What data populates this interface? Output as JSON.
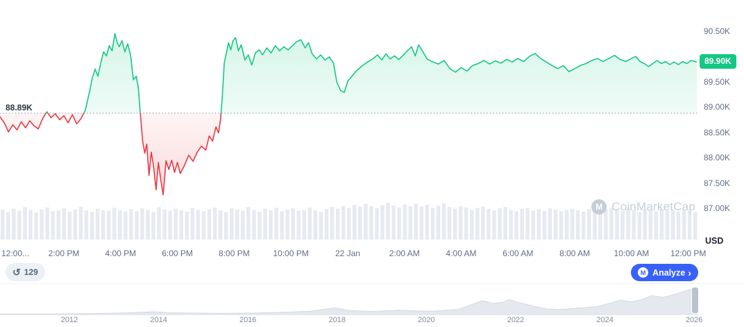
{
  "chart_data": [
    {
      "id": "price-line",
      "type": "line",
      "x_axis": {
        "ticks": [
          {
            "label": "12:00...",
            "hour": 0
          },
          {
            "label": "2:00 PM",
            "hour": 2
          },
          {
            "label": "4:00 PM",
            "hour": 4
          },
          {
            "label": "6:00 PM",
            "hour": 6
          },
          {
            "label": "8:00 PM",
            "hour": 8
          },
          {
            "label": "10:00 PM",
            "hour": 10
          },
          {
            "label": "22 Jan",
            "hour": 12
          },
          {
            "label": "2:00 AM",
            "hour": 14
          },
          {
            "label": "4:00 AM",
            "hour": 16
          },
          {
            "label": "6:00 AM",
            "hour": 18
          },
          {
            "label": "8:00 AM",
            "hour": 20
          },
          {
            "label": "10:00 AM",
            "hour": 22
          },
          {
            "label": "12:00 PM",
            "hour": 24
          }
        ],
        "range_hours": [
          -0.25,
          24.3
        ]
      },
      "y_axis": {
        "unit_label": "USD",
        "ticks": [
          {
            "label": "90.50K",
            "value": 90.5
          },
          {
            "label": "89.50K",
            "value": 89.5
          },
          {
            "label": "89.00K",
            "value": 89.0
          },
          {
            "label": "88.50K",
            "value": 88.5
          },
          {
            "label": "88.00K",
            "value": 88.0
          },
          {
            "label": "87.50K",
            "value": 87.5
          },
          {
            "label": "87.00K",
            "value": 87.0
          }
        ],
        "range": [
          87.0,
          90.5
        ]
      },
      "baseline": {
        "label": "88.89K",
        "value": 88.89
      },
      "current_price": {
        "label": "89.90K",
        "value": 89.9
      },
      "colors": {
        "up": "#16c784",
        "down": "#ea3943",
        "baseline_dots": "#97a1b3"
      },
      "series": [
        [
          -0.25,
          88.82
        ],
        [
          -0.1,
          88.7
        ],
        [
          0.05,
          88.52
        ],
        [
          0.2,
          88.66
        ],
        [
          0.35,
          88.56
        ],
        [
          0.5,
          88.72
        ],
        [
          0.65,
          88.6
        ],
        [
          0.8,
          88.74
        ],
        [
          0.95,
          88.64
        ],
        [
          1.1,
          88.58
        ],
        [
          1.25,
          88.78
        ],
        [
          1.4,
          88.92
        ],
        [
          1.55,
          88.8
        ],
        [
          1.7,
          88.88
        ],
        [
          1.85,
          88.76
        ],
        [
          2,
          88.84
        ],
        [
          2.15,
          88.7
        ],
        [
          2.3,
          88.86
        ],
        [
          2.45,
          88.68
        ],
        [
          2.6,
          88.78
        ],
        [
          2.75,
          88.94
        ],
        [
          2.9,
          89.3
        ],
        [
          3,
          89.58
        ],
        [
          3.1,
          89.76
        ],
        [
          3.2,
          89.62
        ],
        [
          3.3,
          89.88
        ],
        [
          3.4,
          90.1
        ],
        [
          3.5,
          90.02
        ],
        [
          3.6,
          90.22
        ],
        [
          3.7,
          90.12
        ],
        [
          3.8,
          90.46
        ],
        [
          3.88,
          90.28
        ],
        [
          3.95,
          90.2
        ],
        [
          4.05,
          90.32
        ],
        [
          4.15,
          90.1
        ],
        [
          4.25,
          90.26
        ],
        [
          4.35,
          90.04
        ],
        [
          4.45,
          89.55
        ],
        [
          4.55,
          89.62
        ],
        [
          4.62,
          89.4
        ],
        [
          4.7,
          88.85
        ],
        [
          4.78,
          88.32
        ],
        [
          4.85,
          88.1
        ],
        [
          4.92,
          88.28
        ],
        [
          5,
          87.66
        ],
        [
          5.08,
          88.12
        ],
        [
          5.16,
          87.85
        ],
        [
          5.25,
          87.38
        ],
        [
          5.33,
          87.92
        ],
        [
          5.42,
          87.55
        ],
        [
          5.5,
          87.28
        ],
        [
          5.6,
          87.95
        ],
        [
          5.7,
          87.78
        ],
        [
          5.8,
          87.96
        ],
        [
          5.9,
          87.72
        ],
        [
          6,
          87.92
        ],
        [
          6.1,
          87.7
        ],
        [
          6.25,
          87.86
        ],
        [
          6.4,
          88.06
        ],
        [
          6.55,
          87.94
        ],
        [
          6.7,
          88.12
        ],
        [
          6.85,
          88.24
        ],
        [
          7,
          88.16
        ],
        [
          7.12,
          88.44
        ],
        [
          7.24,
          88.34
        ],
        [
          7.36,
          88.62
        ],
        [
          7.45,
          88.5
        ],
        [
          7.52,
          88.76
        ],
        [
          7.58,
          89.2
        ],
        [
          7.65,
          89.88
        ],
        [
          7.72,
          90.06
        ],
        [
          7.8,
          90.28
        ],
        [
          7.88,
          90.14
        ],
        [
          7.96,
          90.32
        ],
        [
          8.05,
          90.38
        ],
        [
          8.15,
          90.12
        ],
        [
          8.25,
          90.24
        ],
        [
          8.38,
          89.94
        ],
        [
          8.5,
          90.04
        ],
        [
          8.62,
          89.84
        ],
        [
          8.75,
          90.08
        ],
        [
          8.88,
          90.14
        ],
        [
          9,
          90.04
        ],
        [
          9.15,
          90.18
        ],
        [
          9.3,
          90.08
        ],
        [
          9.45,
          90.22
        ],
        [
          9.6,
          90.12
        ],
        [
          9.75,
          90.2
        ],
        [
          9.9,
          90.14
        ],
        [
          10.05,
          90.22
        ],
        [
          10.2,
          90.3
        ],
        [
          10.35,
          90.34
        ],
        [
          10.5,
          90.18
        ],
        [
          10.62,
          90.28
        ],
        [
          10.75,
          90.06
        ],
        [
          10.9,
          89.96
        ],
        [
          11.05,
          90.04
        ],
        [
          11.2,
          89.94
        ],
        [
          11.35,
          90
        ],
        [
          11.5,
          89.88
        ],
        [
          11.62,
          89.5
        ],
        [
          11.75,
          89.34
        ],
        [
          11.88,
          89.3
        ],
        [
          12,
          89.52
        ],
        [
          12.15,
          89.62
        ],
        [
          12.3,
          89.72
        ],
        [
          12.5,
          89.82
        ],
        [
          12.7,
          89.9
        ],
        [
          12.9,
          89.97
        ],
        [
          13.05,
          90.04
        ],
        [
          13.2,
          89.94
        ],
        [
          13.35,
          90.06
        ],
        [
          13.5,
          89.96
        ],
        [
          13.65,
          90.02
        ],
        [
          13.8,
          89.95
        ],
        [
          13.95,
          90.03
        ],
        [
          14.1,
          90.12
        ],
        [
          14.25,
          90.2
        ],
        [
          14.38,
          90.02
        ],
        [
          14.5,
          90.24
        ],
        [
          14.65,
          90.1
        ],
        [
          14.8,
          89.96
        ],
        [
          15,
          89.9
        ],
        [
          15.2,
          89.86
        ],
        [
          15.4,
          89.93
        ],
        [
          15.6,
          89.77
        ],
        [
          15.8,
          89.7
        ],
        [
          16,
          89.79
        ],
        [
          16.2,
          89.72
        ],
        [
          16.4,
          89.83
        ],
        [
          16.6,
          89.87
        ],
        [
          16.8,
          89.93
        ],
        [
          17,
          89.86
        ],
        [
          17.2,
          89.92
        ],
        [
          17.4,
          89.88
        ],
        [
          17.6,
          89.95
        ],
        [
          17.8,
          89.9
        ],
        [
          18,
          89.97
        ],
        [
          18.2,
          89.91
        ],
        [
          18.4,
          90.01
        ],
        [
          18.6,
          90.07
        ],
        [
          18.8,
          89.97
        ],
        [
          19,
          89.9
        ],
        [
          19.2,
          89.83
        ],
        [
          19.4,
          89.77
        ],
        [
          19.6,
          89.83
        ],
        [
          19.8,
          89.71
        ],
        [
          20,
          89.77
        ],
        [
          20.2,
          89.83
        ],
        [
          20.4,
          89.87
        ],
        [
          20.6,
          89.93
        ],
        [
          20.8,
          89.97
        ],
        [
          21,
          89.91
        ],
        [
          21.2,
          89.97
        ],
        [
          21.4,
          90.03
        ],
        [
          21.6,
          89.95
        ],
        [
          21.8,
          89.91
        ],
        [
          22,
          89.97
        ],
        [
          22.15,
          90.01
        ],
        [
          22.3,
          89.91
        ],
        [
          22.45,
          89.87
        ],
        [
          22.6,
          89.81
        ],
        [
          22.75,
          89.87
        ],
        [
          22.9,
          89.93
        ],
        [
          23.05,
          89.87
        ],
        [
          23.2,
          89.91
        ],
        [
          23.35,
          89.85
        ],
        [
          23.5,
          89.9
        ],
        [
          23.65,
          89.85
        ],
        [
          23.8,
          89.91
        ],
        [
          23.95,
          89.87
        ],
        [
          24.1,
          89.93
        ],
        [
          24.3,
          89.9
        ]
      ]
    },
    {
      "id": "volume-bars",
      "type": "bar",
      "color": "#e7eaf0",
      "values": [
        7.2,
        6.6,
        7.4,
        6.9,
        7.8,
        7.1,
        6.5,
        7.3,
        7.7,
        6.8,
        7.0,
        7.5,
        6.7,
        7.2,
        7.9,
        7.0,
        6.6,
        7.4,
        7.1,
        6.9,
        7.6,
        7.0,
        6.7,
        7.3,
        6.8,
        7.5,
        7.1,
        6.6,
        7.8,
        7.2,
        6.9,
        7.4,
        7.0,
        6.7,
        7.6,
        7.1,
        6.8,
        7.3,
        7.7,
        7.0,
        6.6,
        7.5,
        7.2,
        6.9,
        7.8,
        7.1,
        6.7,
        7.4,
        7.0,
        7.6,
        6.8,
        7.2,
        7.5,
        6.9,
        7.1,
        7.7,
        7.0,
        6.6,
        7.3,
        7.8,
        7.4,
        8.1,
        7.6,
        8.3,
        7.9,
        8.6,
        8.0,
        7.5,
        8.2,
        8.8,
        8.1,
        7.7,
        8.4,
        8.0,
        8.6,
        7.9,
        8.3,
        7.6,
        8.1,
        8.7,
        7.8,
        7.4,
        8.0,
        7.7,
        7.2,
        7.6,
        7.9,
        7.3,
        7.0,
        7.5,
        7.8,
        7.1,
        6.8,
        7.4,
        7.6,
        7.0,
        7.3,
        6.9,
        7.5,
        7.2,
        6.8,
        7.1,
        7.4,
        7.0,
        6.7,
        7.3,
        7.6,
        6.9,
        7.2,
        7.5,
        7.0,
        6.8,
        7.4,
        7.1,
        6.6,
        7.2,
        7.0,
        6.8,
        7.3,
        6.9,
        7.1,
        6.7,
        7.0,
        6.8,
        6.6
      ]
    },
    {
      "id": "history-overview",
      "type": "area",
      "years": [
        {
          "label": "2012",
          "year": 2012
        },
        {
          "label": "2014",
          "year": 2014
        },
        {
          "label": "2016",
          "year": 2016
        },
        {
          "label": "2018",
          "year": 2018
        },
        {
          "label": "2020",
          "year": 2020
        },
        {
          "label": "2022",
          "year": 2022
        },
        {
          "label": "2024",
          "year": 2024
        },
        {
          "label": "2026",
          "year": 2026
        }
      ],
      "x_range_years": [
        2010.4,
        2026.1
      ],
      "points": [
        [
          2010.4,
          2
        ],
        [
          2011,
          2
        ],
        [
          2012,
          2.5
        ],
        [
          2012.8,
          4
        ],
        [
          2013.3,
          6
        ],
        [
          2013.9,
          10
        ],
        [
          2014.2,
          7
        ],
        [
          2014.8,
          5
        ],
        [
          2015.5,
          4
        ],
        [
          2016,
          5
        ],
        [
          2016.8,
          8
        ],
        [
          2017.4,
          12
        ],
        [
          2017.95,
          24
        ],
        [
          2018.3,
          14
        ],
        [
          2018.8,
          11
        ],
        [
          2019.4,
          16
        ],
        [
          2019.8,
          13
        ],
        [
          2020.2,
          12
        ],
        [
          2020.7,
          18
        ],
        [
          2020.95,
          32
        ],
        [
          2021.25,
          50
        ],
        [
          2021.5,
          40
        ],
        [
          2021.7,
          44
        ],
        [
          2021.85,
          54
        ],
        [
          2022.1,
          42
        ],
        [
          2022.4,
          30
        ],
        [
          2022.7,
          20
        ],
        [
          2023,
          18
        ],
        [
          2023.4,
          23
        ],
        [
          2023.8,
          28
        ],
        [
          2024.1,
          40
        ],
        [
          2024.35,
          52
        ],
        [
          2024.6,
          46
        ],
        [
          2024.85,
          55
        ],
        [
          2025.05,
          68
        ],
        [
          2025.3,
          62
        ],
        [
          2025.55,
          72
        ],
        [
          2025.75,
          82
        ],
        [
          2025.95,
          92
        ],
        [
          2026.1,
          86
        ]
      ]
    }
  ],
  "watermark": {
    "label": "CoinMarketCap"
  },
  "toolbar": {
    "history_count": "129",
    "analyze_label": "Analyze"
  },
  "icons": {
    "cmc_logo_glyph": "M",
    "history_glyph": "↺",
    "chevron_right_glyph": "›"
  }
}
